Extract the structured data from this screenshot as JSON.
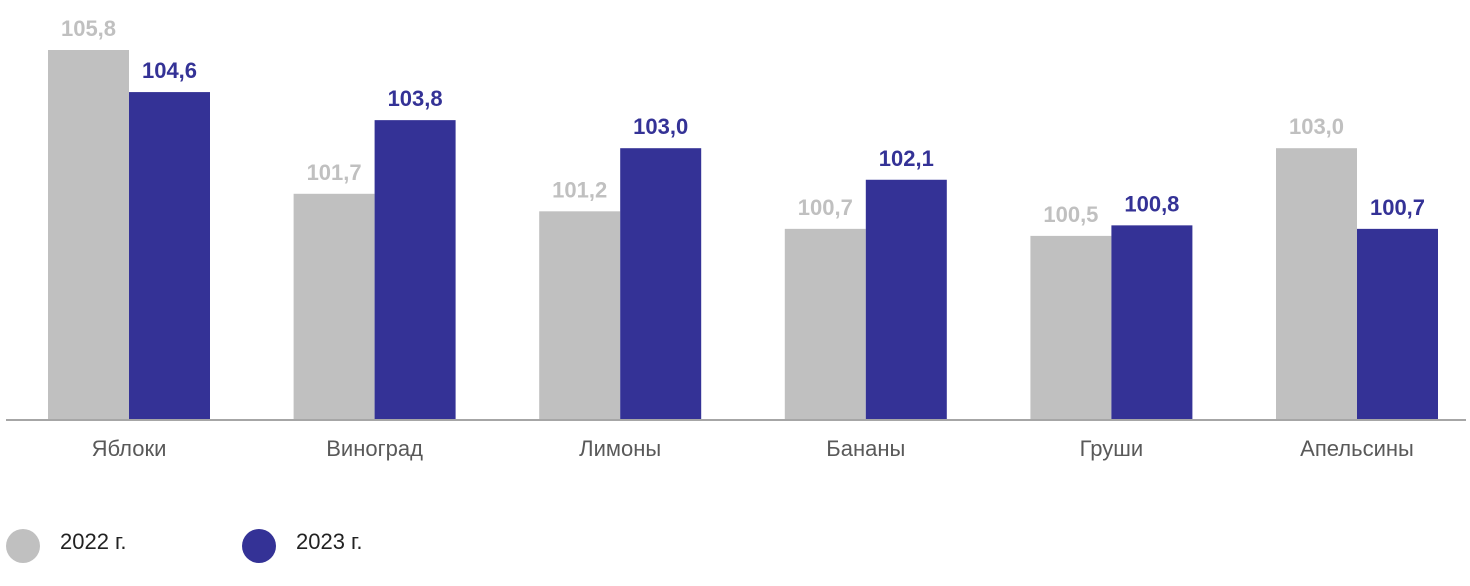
{
  "chart_data": {
    "type": "bar",
    "categories": [
      "Яблоки",
      "Виноград",
      "Лимоны",
      "Бананы",
      "Груши",
      "Апельсины"
    ],
    "series": [
      {
        "name": "2022 г.",
        "values": [
          105.8,
          101.7,
          101.2,
          100.7,
          100.5,
          103.0
        ],
        "labels": [
          "105,8",
          "101,7",
          "101,2",
          "100,7",
          "100,5",
          "103,0"
        ],
        "color": "#c0c0c0",
        "label_color": "#c0c0c0"
      },
      {
        "name": "2023 г.",
        "values": [
          104.6,
          103.8,
          103.0,
          102.1,
          100.8,
          100.7
        ],
        "labels": [
          "104,6",
          "103,8",
          "103,0",
          "102,1",
          "100,8",
          "100,7"
        ],
        "color": "#343296",
        "label_color": "#343296"
      }
    ],
    "ylim": [
      95.25,
      105.8
    ],
    "grid": false,
    "legend_position": "bottom-left",
    "axis_color": "#a6a6a6"
  }
}
